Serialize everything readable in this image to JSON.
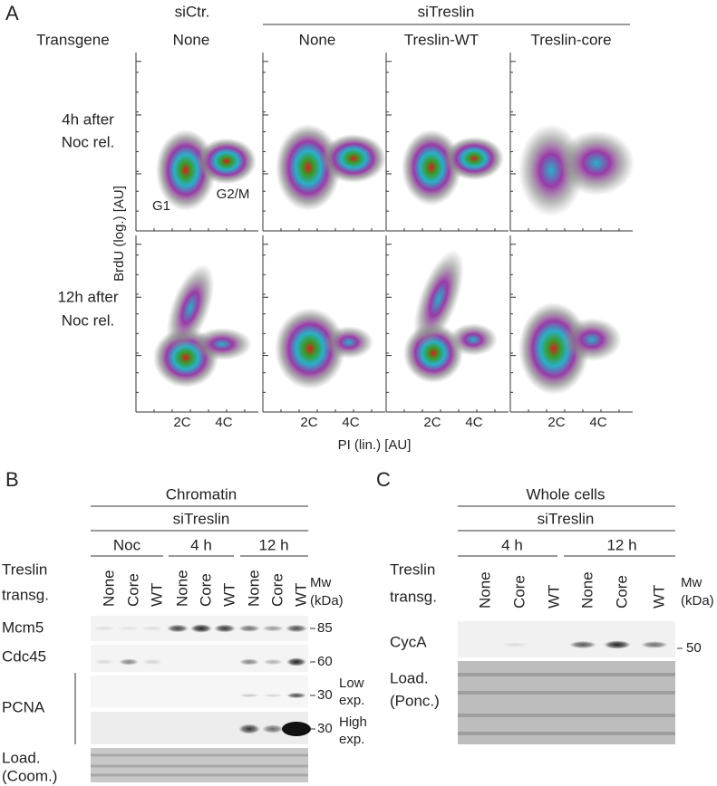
{
  "panel_a": {
    "label": "A",
    "transgene_label": "Transgene",
    "sictr": "siCtr.",
    "sitreslin": "siTreslin",
    "columns": [
      "None",
      "None",
      "Treslin-WT",
      "Treslin-core"
    ],
    "rows": [
      [
        "4h after",
        "Noc rel."
      ],
      [
        "12h after",
        "Noc rel."
      ]
    ],
    "populations": [
      "G1",
      "G2/M"
    ],
    "y_axis": "BrdU (log.) [AU]",
    "x_axis": "PI (lin.) [AU]",
    "x_ticks": [
      "2C",
      "4C"
    ]
  },
  "panel_b": {
    "label": "B",
    "group": "Chromatin",
    "treatment": "siTreslin",
    "timepoints": [
      "Noc",
      "4 h",
      "12 h"
    ],
    "row_label": [
      "Treslin",
      "transg."
    ],
    "lanes": [
      "None",
      "Core",
      "WT"
    ],
    "mw_label": [
      "Mw",
      "(kDa)"
    ],
    "blots": [
      {
        "name": "Mcm5",
        "mw": "85"
      },
      {
        "name": "Cdc45",
        "mw": "60"
      },
      {
        "mw": "30",
        "note": [
          "Low",
          "exp."
        ]
      },
      {
        "mw": "30",
        "note": [
          "High",
          "exp."
        ]
      }
    ],
    "pcna": "PCNA",
    "loading": [
      "Load.",
      "(Coom.)"
    ]
  },
  "panel_c": {
    "label": "C",
    "group": "Whole cells",
    "treatment": "siTreslin",
    "timepoints": [
      "4 h",
      "12 h"
    ],
    "row_label": [
      "Treslin",
      "transg."
    ],
    "lanes": [
      "None",
      "Core",
      "WT"
    ],
    "mw_label": [
      "Mw",
      "(kDa)"
    ],
    "blot": {
      "name": "CycA",
      "mw": "50"
    },
    "loading": [
      "Load.",
      "(Ponc.)"
    ]
  }
}
